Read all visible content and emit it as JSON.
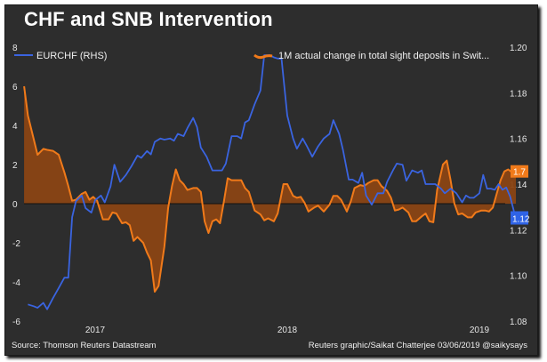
{
  "chart_data": {
    "type": "line",
    "title": "CHF and SNB Intervention",
    "left_axis": {
      "ticks": [
        "8",
        "6",
        "4",
        "2",
        "0",
        "-2",
        "-4",
        "-6"
      ],
      "range": [
        -6,
        8
      ]
    },
    "right_axis": {
      "ticks": [
        "1.20",
        "1.18",
        "1.16",
        "1.14",
        "1.12",
        "1.10",
        "1.08"
      ],
      "range": [
        1.08,
        1.2
      ]
    },
    "x_ticks": [
      {
        "label": "2017",
        "year": 2017.0
      },
      {
        "label": "2018",
        "year": 2018.0
      },
      {
        "label": "2019",
        "year": 2019.0
      }
    ],
    "x_range": [
      2016.63,
      2019.18
    ],
    "zero_line": true,
    "series": [
      {
        "name": "EURCHF (RHS)",
        "axis": "right",
        "color": "#3a64e0",
        "last_value_label": "1.12",
        "points": [
          [
            2016.65,
            1.0873
          ],
          [
            2016.68,
            1.0865
          ],
          [
            2016.7,
            1.0858
          ],
          [
            2016.73,
            1.088
          ],
          [
            2016.75,
            1.0852
          ],
          [
            2016.78,
            1.09
          ],
          [
            2016.81,
            1.0945
          ],
          [
            2016.84,
            1.099
          ],
          [
            2016.86,
            1.099
          ],
          [
            2016.88,
            1.1255
          ],
          [
            2016.9,
            1.1325
          ],
          [
            2016.93,
            1.135
          ],
          [
            2016.95,
            1.1295
          ],
          [
            2016.98,
            1.1275
          ],
          [
            2017.0,
            1.133
          ],
          [
            2017.03,
            1.135
          ],
          [
            2017.05,
            1.132
          ],
          [
            2017.08,
            1.139
          ],
          [
            2017.1,
            1.1485
          ],
          [
            2017.13,
            1.141
          ],
          [
            2017.16,
            1.144
          ],
          [
            2017.19,
            1.148
          ],
          [
            2017.22,
            1.1525
          ],
          [
            2017.24,
            1.1515
          ],
          [
            2017.27,
            1.1545
          ],
          [
            2017.29,
            1.153
          ],
          [
            2017.31,
            1.1585
          ],
          [
            2017.34,
            1.16
          ],
          [
            2017.36,
            1.1595
          ],
          [
            2017.39,
            1.16
          ],
          [
            2017.41,
            1.159
          ],
          [
            2017.43,
            1.162
          ],
          [
            2017.46,
            1.161
          ],
          [
            2017.48,
            1.1645
          ],
          [
            2017.51,
            1.169
          ],
          [
            2017.53,
            1.165
          ],
          [
            2017.55,
            1.156
          ],
          [
            2017.58,
            1.152
          ],
          [
            2017.61,
            1.146
          ],
          [
            2017.63,
            1.146
          ],
          [
            2017.66,
            1.146
          ],
          [
            2017.68,
            1.149
          ],
          [
            2017.71,
            1.161
          ],
          [
            2017.74,
            1.161
          ],
          [
            2017.76,
            1.16
          ],
          [
            2017.78,
            1.167
          ],
          [
            2017.8,
            1.168
          ],
          [
            2017.83,
            1.175
          ],
          [
            2017.86,
            1.181
          ],
          [
            2017.88,
            1.1965
          ],
          [
            2017.91,
            1.1965
          ],
          [
            2017.93,
            1.1955
          ],
          [
            2017.95,
            1.195
          ],
          [
            2017.97,
            1.195
          ],
          [
            2018.0,
            1.17
          ],
          [
            2018.03,
            1.16
          ],
          [
            2018.05,
            1.1555
          ],
          [
            2018.08,
            1.16
          ],
          [
            2018.1,
            1.157
          ],
          [
            2018.13,
            1.152
          ],
          [
            2018.16,
            1.1565
          ],
          [
            2018.19,
            1.16
          ],
          [
            2018.22,
            1.162
          ],
          [
            2018.24,
            1.168
          ],
          [
            2018.27,
            1.162
          ],
          [
            2018.29,
            1.155
          ],
          [
            2018.32,
            1.142
          ],
          [
            2018.34,
            1.142
          ],
          [
            2018.37,
            1.1405
          ],
          [
            2018.39,
            1.145
          ],
          [
            2018.41,
            1.135
          ],
          [
            2018.44,
            1.131
          ],
          [
            2018.47,
            1.136
          ],
          [
            2018.5,
            1.136
          ],
          [
            2018.52,
            1.141
          ],
          [
            2018.55,
            1.146
          ],
          [
            2018.57,
            1.149
          ],
          [
            2018.6,
            1.1485
          ],
          [
            2018.62,
            1.1415
          ],
          [
            2018.65,
            1.146
          ],
          [
            2018.68,
            1.145
          ],
          [
            2018.7,
            1.146
          ],
          [
            2018.72,
            1.14
          ],
          [
            2018.75,
            1.14
          ],
          [
            2018.77,
            1.14
          ],
          [
            2018.8,
            1.138
          ],
          [
            2018.82,
            1.136
          ],
          [
            2018.85,
            1.138
          ],
          [
            2018.88,
            1.136
          ],
          [
            2018.91,
            1.132
          ],
          [
            2018.93,
            1.135
          ],
          [
            2018.95,
            1.134
          ],
          [
            2018.97,
            1.134
          ],
          [
            2019.0,
            1.136
          ],
          [
            2019.02,
            1.144
          ],
          [
            2019.04,
            1.138
          ],
          [
            2019.06,
            1.138
          ],
          [
            2019.08,
            1.1375
          ],
          [
            2019.1,
            1.14
          ],
          [
            2019.12,
            1.1375
          ],
          [
            2019.14,
            1.1385
          ],
          [
            2019.16,
            1.1345
          ],
          [
            2019.18,
            1.128
          ],
          [
            2019.2,
            1.125
          ]
        ]
      },
      {
        "name": "1M actual change in total sight deposits in Swit...",
        "axis": "left",
        "color": "#f07a1a",
        "fill": "#8a4414",
        "last_value_label": "1.7",
        "points": [
          [
            2016.63,
            6.0
          ],
          [
            2016.65,
            4.5
          ],
          [
            2016.68,
            3.3
          ],
          [
            2016.7,
            2.5
          ],
          [
            2016.73,
            2.8
          ],
          [
            2016.75,
            2.75
          ],
          [
            2016.78,
            2.7
          ],
          [
            2016.81,
            2.5
          ],
          [
            2016.84,
            1.6
          ],
          [
            2016.86,
            0.9
          ],
          [
            2016.88,
            0.15
          ],
          [
            2016.9,
            0.2
          ],
          [
            2016.93,
            0.5
          ],
          [
            2016.95,
            0.6
          ],
          [
            2016.97,
            0.2
          ],
          [
            2016.99,
            0.35
          ],
          [
            2017.01,
            0.15
          ],
          [
            2017.04,
            -0.8
          ],
          [
            2017.07,
            -0.8
          ],
          [
            2017.09,
            -0.45
          ],
          [
            2017.11,
            -0.5
          ],
          [
            2017.14,
            -1.0
          ],
          [
            2017.16,
            -0.95
          ],
          [
            2017.18,
            -1.1
          ],
          [
            2017.2,
            -1.9
          ],
          [
            2017.22,
            -1.7
          ],
          [
            2017.25,
            -2.0
          ],
          [
            2017.27,
            -2.5
          ],
          [
            2017.29,
            -2.9
          ],
          [
            2017.31,
            -4.5
          ],
          [
            2017.33,
            -4.2
          ],
          [
            2017.36,
            -2.2
          ],
          [
            2017.38,
            -0.2
          ],
          [
            2017.4,
            0.9
          ],
          [
            2017.42,
            1.75
          ],
          [
            2017.44,
            1.2
          ],
          [
            2017.46,
            1.0
          ],
          [
            2017.48,
            0.7
          ],
          [
            2017.51,
            0.8
          ],
          [
            2017.53,
            0.8
          ],
          [
            2017.55,
            0.6
          ],
          [
            2017.57,
            -0.9
          ],
          [
            2017.59,
            -1.5
          ],
          [
            2017.61,
            -0.9
          ],
          [
            2017.63,
            -0.8
          ],
          [
            2017.65,
            -1.0
          ],
          [
            2017.67,
            0.1
          ],
          [
            2017.69,
            1.3
          ],
          [
            2017.71,
            1.2
          ],
          [
            2017.74,
            1.2
          ],
          [
            2017.76,
            1.2
          ],
          [
            2017.78,
            0.8
          ],
          [
            2017.8,
            0.6
          ],
          [
            2017.83,
            -0.35
          ],
          [
            2017.86,
            -0.55
          ],
          [
            2017.88,
            -0.85
          ],
          [
            2017.9,
            -0.75
          ],
          [
            2017.93,
            -0.9
          ],
          [
            2017.95,
            -0.5
          ],
          [
            2017.98,
            1.0
          ],
          [
            2018.0,
            1.0
          ],
          [
            2018.03,
            0.4
          ],
          [
            2018.05,
            0.3
          ],
          [
            2018.07,
            0.35
          ],
          [
            2018.09,
            0.05
          ],
          [
            2018.11,
            -0.4
          ],
          [
            2018.14,
            -0.2
          ],
          [
            2018.16,
            -0.1
          ],
          [
            2018.19,
            -0.4
          ],
          [
            2018.22,
            -0.05
          ],
          [
            2018.24,
            0.4
          ],
          [
            2018.26,
            0.4
          ],
          [
            2018.28,
            0.2
          ],
          [
            2018.31,
            -0.4
          ],
          [
            2018.33,
            0.1
          ],
          [
            2018.35,
            0.8
          ],
          [
            2018.38,
            0.95
          ],
          [
            2018.4,
            0.9
          ],
          [
            2018.42,
            1.05
          ],
          [
            2018.45,
            1.2
          ],
          [
            2018.47,
            1.2
          ],
          [
            2018.49,
            0.9
          ],
          [
            2018.52,
            0.65
          ],
          [
            2018.54,
            0.3
          ],
          [
            2018.56,
            -0.35
          ],
          [
            2018.58,
            -0.3
          ],
          [
            2018.6,
            -0.2
          ],
          [
            2018.63,
            -0.45
          ],
          [
            2018.65,
            -0.9
          ],
          [
            2018.67,
            -0.9
          ],
          [
            2018.7,
            -0.65
          ],
          [
            2018.72,
            -0.5
          ],
          [
            2018.74,
            -0.9
          ],
          [
            2018.76,
            -0.95
          ],
          [
            2018.78,
            0.7
          ],
          [
            2018.81,
            2.0
          ],
          [
            2018.83,
            2.2
          ],
          [
            2018.85,
            1.2
          ],
          [
            2018.87,
            0.0
          ],
          [
            2018.89,
            -0.55
          ],
          [
            2018.91,
            -0.5
          ],
          [
            2018.94,
            -0.7
          ],
          [
            2018.96,
            -0.7
          ],
          [
            2018.98,
            -0.45
          ],
          [
            2019.01,
            -0.35
          ],
          [
            2019.03,
            -0.35
          ],
          [
            2019.05,
            -0.4
          ],
          [
            2019.07,
            -0.2
          ],
          [
            2019.09,
            0.5
          ],
          [
            2019.11,
            1.2
          ],
          [
            2019.13,
            1.65
          ],
          [
            2019.15,
            1.75
          ],
          [
            2019.17,
            1.6
          ],
          [
            2019.19,
            1.65
          ]
        ]
      }
    ]
  },
  "footer": {
    "source": "Source: Thomson Reuters Datastream",
    "credit": "Reuters graphic/Saikat Chatterjee 03/06/2019 @saikysays"
  }
}
